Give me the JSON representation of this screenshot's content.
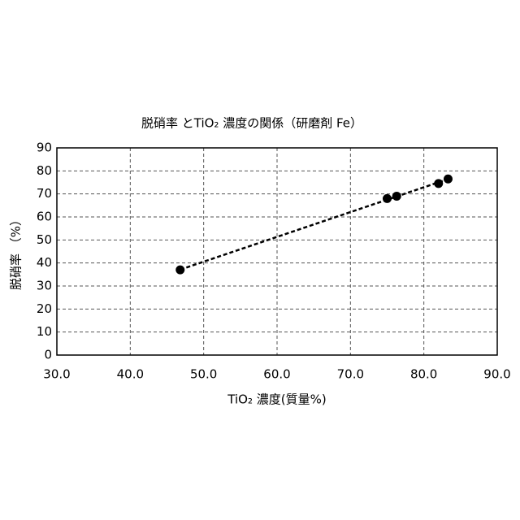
{
  "chart_data": {
    "type": "scatter",
    "title": "脱硝率 とTiO₂ 濃度の関係（研磨剤 Fe）",
    "x_label": "TiO₂ 濃度(質量%)",
    "y_label": "脱硝率 （%）",
    "series": [
      {
        "name": "Fe",
        "color": "#000000",
        "x": [
          46.8,
          75.0,
          76.3,
          82.0,
          83.3
        ],
        "values": [
          37.0,
          68.0,
          69.0,
          74.5,
          76.5
        ]
      }
    ],
    "trendline": true,
    "xlim": [
      30,
      90
    ],
    "xticks": [
      {
        "value": 30,
        "label": "30.0"
      },
      {
        "value": 40,
        "label": "40.0"
      },
      {
        "value": 50,
        "label": "50.0"
      },
      {
        "value": 60,
        "label": "60.0"
      },
      {
        "value": 70,
        "label": "70.0"
      },
      {
        "value": 80,
        "label": "80.0"
      },
      {
        "value": 90,
        "label": "90.0"
      }
    ],
    "ylim": [
      0,
      90
    ],
    "yticks": [
      0,
      10,
      20,
      30,
      40,
      50,
      60,
      70,
      80,
      90
    ],
    "grid": true
  }
}
